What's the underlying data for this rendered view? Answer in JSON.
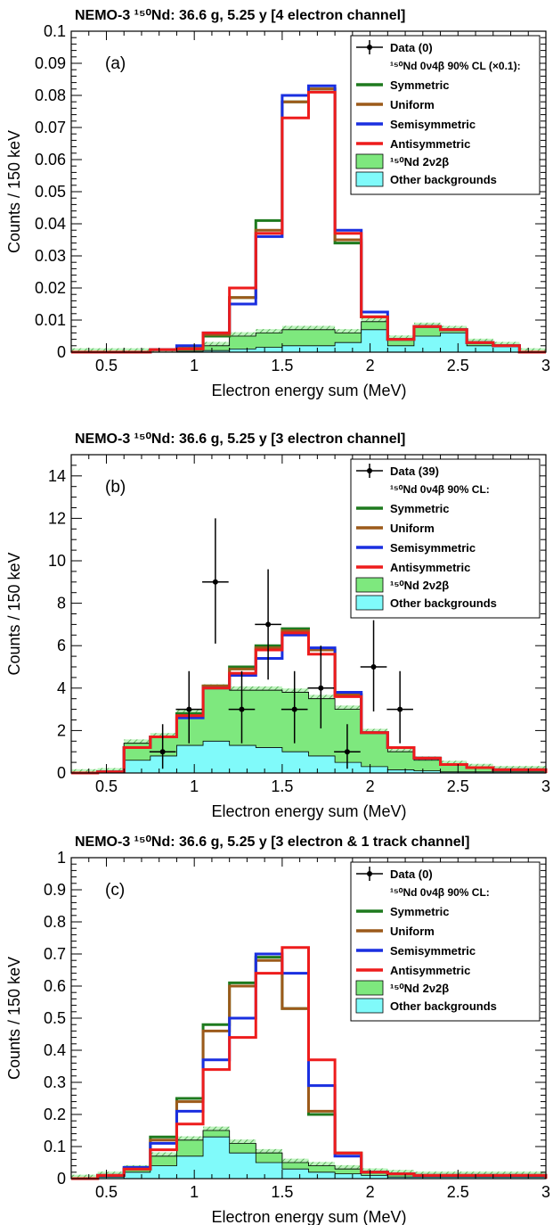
{
  "chart_data": [
    {
      "type": "bar",
      "title": "NEMO-3 ¹⁵⁰Nd: 36.6 g, 5.25 y [4 electron channel]",
      "panel_label": "(a)",
      "xlabel": "Electron energy sum (MeV)",
      "ylabel": "Counts / 150 keV",
      "xlim": [
        0.3,
        3.0
      ],
      "ylim": [
        0,
        0.1
      ],
      "xticks": [
        "0.5",
        "1",
        "1.5",
        "2",
        "2.5",
        "3"
      ],
      "yticks": [
        "0",
        "0.01",
        "0.02",
        "0.03",
        "0.04",
        "0.05",
        "0.06",
        "0.07",
        "0.08",
        "0.09",
        "0.1"
      ],
      "bin_edges": [
        0.3,
        0.45,
        0.6,
        0.75,
        0.9,
        1.05,
        1.2,
        1.35,
        1.5,
        1.65,
        1.8,
        1.95,
        2.1,
        2.25,
        2.4,
        2.55,
        2.7,
        2.85,
        3.0
      ],
      "legend_placement": "top-right",
      "legend": {
        "data": "Data (0)",
        "limit_header": "¹⁵⁰Nd 0ν4β 90% CL (×0.1):",
        "symmetric": "Symmetric",
        "uniform": "Uniform",
        "semisymmetric": "Semisymmetric",
        "antisymmetric": "Antisymmetric",
        "two_nu": "¹⁵⁰Nd 2ν2β",
        "other": "Other backgrounds"
      },
      "other_backgrounds": [
        0,
        0,
        0,
        0,
        0.0003,
        0.0005,
        0.001,
        0.0015,
        0.002,
        0.002,
        0.003,
        0.007,
        0.002,
        0.005,
        0.006,
        0.002,
        0.002,
        0
      ],
      "stack_total": [
        0,
        0,
        0,
        0,
        0.001,
        0.002,
        0.005,
        0.006,
        0.007,
        0.007,
        0.006,
        0.0095,
        0.004,
        0.008,
        0.007,
        0.003,
        0.002,
        0
      ],
      "series": [
        {
          "name": "Symmetric",
          "color": "#1e7a1e",
          "values": [
            0,
            0,
            0,
            0.0008,
            0.001,
            0.005,
            0.017,
            0.041,
            0.078,
            0.082,
            0.034,
            0.011,
            0.004,
            0.008,
            0.007,
            0.003,
            0.002,
            0
          ]
        },
        {
          "name": "Uniform",
          "color": "#9c5a1a",
          "values": [
            0,
            0,
            0,
            0.0008,
            0.0012,
            0.0055,
            0.017,
            0.038,
            0.078,
            0.082,
            0.035,
            0.011,
            0.004,
            0.008,
            0.007,
            0.003,
            0.002,
            0
          ]
        },
        {
          "name": "Semisymmetric",
          "color": "#1a2fe0",
          "values": [
            0,
            0,
            0,
            0.0008,
            0.002,
            0.006,
            0.015,
            0.036,
            0.08,
            0.083,
            0.038,
            0.0125,
            0.004,
            0.008,
            0.007,
            0.003,
            0.002,
            0
          ]
        },
        {
          "name": "Antisymmetric",
          "color": "#ee1c1c",
          "values": [
            0,
            0,
            0,
            0.0008,
            0.001,
            0.006,
            0.02,
            0.037,
            0.073,
            0.081,
            0.037,
            0.011,
            0.004,
            0.008,
            0.007,
            0.003,
            0.002,
            0
          ]
        }
      ],
      "data_points": []
    },
    {
      "type": "bar",
      "title": "NEMO-3 ¹⁵⁰Nd: 36.6 g, 5.25 y [3 electron channel]",
      "panel_label": "(b)",
      "xlabel": "Electron energy sum (MeV)",
      "ylabel": "Counts / 150 keV",
      "xlim": [
        0.3,
        3.0
      ],
      "ylim": [
        0,
        15
      ],
      "xticks": [
        "0.5",
        "1",
        "1.5",
        "2",
        "2.5",
        "3"
      ],
      "yticks": [
        "0",
        "2",
        "4",
        "6",
        "8",
        "10",
        "12",
        "14"
      ],
      "bin_edges": [
        0.3,
        0.45,
        0.6,
        0.75,
        0.9,
        1.05,
        1.2,
        1.35,
        1.5,
        1.65,
        1.8,
        1.95,
        2.1,
        2.25,
        2.4,
        2.55,
        2.7,
        2.85,
        3.0
      ],
      "legend_placement": "top-right",
      "legend": {
        "data": "Data (39)",
        "limit_header": "¹⁵⁰Nd 0ν4β 90% CL:",
        "symmetric": "Symmetric",
        "uniform": "Uniform",
        "semisymmetric": "Semisymmetric",
        "antisymmetric": "Antisymmetric",
        "two_nu": "¹⁵⁰Nd 2ν2β",
        "other": "Other backgrounds"
      },
      "other_backgrounds": [
        0,
        0.05,
        0.6,
        0.8,
        1.3,
        1.5,
        1.3,
        1.2,
        1.0,
        0.8,
        0.5,
        0.3,
        0.15,
        0.1,
        0.05,
        0.05,
        0.05,
        0.05
      ],
      "stack_total": [
        0,
        0.05,
        1.4,
        1.7,
        2.8,
        4.0,
        3.9,
        3.9,
        3.8,
        3.5,
        3.0,
        1.9,
        1.0,
        0.6,
        0.4,
        0.25,
        0.15,
        0.15
      ],
      "series": [
        {
          "name": "Symmetric",
          "color": "#1e7a1e",
          "values": [
            0,
            0.05,
            1.2,
            1.7,
            2.8,
            4.1,
            5.0,
            6.0,
            6.8,
            5.8,
            3.7,
            1.9,
            1.2,
            0.7,
            0.4,
            0.25,
            0.15,
            0.15
          ]
        },
        {
          "name": "Uniform",
          "color": "#9c5a1a",
          "values": [
            0,
            0.05,
            1.2,
            1.7,
            2.7,
            4.1,
            4.9,
            5.9,
            6.7,
            5.8,
            3.7,
            1.9,
            1.2,
            0.7,
            0.4,
            0.25,
            0.15,
            0.15
          ]
        },
        {
          "name": "Semisymmetric",
          "color": "#1a2fe0",
          "values": [
            0,
            0.05,
            1.2,
            1.7,
            2.6,
            4.0,
            4.6,
            5.4,
            6.5,
            5.9,
            3.8,
            1.9,
            1.2,
            0.7,
            0.4,
            0.25,
            0.15,
            0.15
          ]
        },
        {
          "name": "Antisymmetric",
          "color": "#ee1c1c",
          "values": [
            0,
            0.05,
            1.2,
            1.7,
            2.7,
            4.0,
            4.7,
            5.8,
            6.6,
            5.6,
            3.6,
            1.9,
            1.2,
            0.7,
            0.4,
            0.25,
            0.15,
            0.15
          ]
        }
      ],
      "data_points": [
        {
          "x": 0.82,
          "y": 1,
          "yerr_low": 0.8,
          "yerr_high": 1.3,
          "xerr": 0.075
        },
        {
          "x": 0.97,
          "y": 3,
          "yerr_low": 1.6,
          "yerr_high": 1.8,
          "xerr": 0.075
        },
        {
          "x": 1.12,
          "y": 9,
          "yerr_low": 2.9,
          "yerr_high": 3.0,
          "xerr": 0.075
        },
        {
          "x": 1.27,
          "y": 3,
          "yerr_low": 1.6,
          "yerr_high": 1.8,
          "xerr": 0.075
        },
        {
          "x": 1.42,
          "y": 7,
          "yerr_low": 2.6,
          "yerr_high": 2.6,
          "xerr": 0.075
        },
        {
          "x": 1.57,
          "y": 3,
          "yerr_low": 1.6,
          "yerr_high": 1.8,
          "xerr": 0.075
        },
        {
          "x": 1.72,
          "y": 4,
          "yerr_low": 1.9,
          "yerr_high": 2.0,
          "xerr": 0.075
        },
        {
          "x": 1.87,
          "y": 1,
          "yerr_low": 0.8,
          "yerr_high": 1.3,
          "xerr": 0.075
        },
        {
          "x": 2.02,
          "y": 5,
          "yerr_low": 2.1,
          "yerr_high": 2.2,
          "xerr": 0.075
        },
        {
          "x": 2.17,
          "y": 3,
          "yerr_low": 1.6,
          "yerr_high": 1.8,
          "xerr": 0.075
        }
      ]
    },
    {
      "type": "bar",
      "title": "NEMO-3 ¹⁵⁰Nd: 36.6 g, 5.25 y [3 electron & 1 track channel]",
      "panel_label": "(c)",
      "xlabel": "Electron energy sum (MeV)",
      "ylabel": "Counts / 150 keV",
      "xlim": [
        0.3,
        3.0
      ],
      "ylim": [
        0,
        1
      ],
      "xticks": [
        "0.5",
        "1",
        "1.5",
        "2",
        "2.5",
        "3"
      ],
      "yticks": [
        "0",
        "0.1",
        "0.2",
        "0.3",
        "0.4",
        "0.5",
        "0.6",
        "0.7",
        "0.8",
        "0.9",
        "1"
      ],
      "bin_edges": [
        0.3,
        0.45,
        0.6,
        0.75,
        0.9,
        1.05,
        1.2,
        1.35,
        1.5,
        1.65,
        1.8,
        1.95,
        2.1,
        2.25,
        2.4,
        2.55,
        2.7,
        2.85,
        3.0
      ],
      "legend_placement": "top-right",
      "legend": {
        "data": "Data (0)",
        "limit_header": "¹⁵⁰Nd 0ν4β 90% CL:",
        "symmetric": "Symmetric",
        "uniform": "Uniform",
        "semisymmetric": "Semisymmetric",
        "antisymmetric": "Antisymmetric",
        "two_nu": "¹⁵⁰Nd 2ν2β",
        "other": "Other backgrounds"
      },
      "other_backgrounds": [
        0,
        0.005,
        0.02,
        0.04,
        0.07,
        0.13,
        0.08,
        0.05,
        0.03,
        0.02,
        0.015,
        0.01,
        0.005,
        0.005,
        0.005,
        0.005,
        0.005,
        0.005
      ],
      "stack_total": [
        0,
        0.01,
        0.03,
        0.07,
        0.12,
        0.15,
        0.11,
        0.08,
        0.05,
        0.04,
        0.03,
        0.02,
        0.015,
        0.01,
        0.01,
        0.01,
        0.01,
        0.01
      ],
      "series": [
        {
          "name": "Symmetric",
          "color": "#1e7a1e",
          "values": [
            0,
            0.01,
            0.03,
            0.13,
            0.25,
            0.48,
            0.61,
            0.69,
            0.53,
            0.2,
            0.08,
            0.02,
            0.015,
            0.01,
            0.01,
            0.01,
            0.01,
            0.01
          ]
        },
        {
          "name": "Uniform",
          "color": "#9c5a1a",
          "values": [
            0,
            0.01,
            0.03,
            0.12,
            0.24,
            0.46,
            0.6,
            0.68,
            0.53,
            0.21,
            0.08,
            0.02,
            0.015,
            0.01,
            0.01,
            0.01,
            0.01,
            0.01
          ]
        },
        {
          "name": "Semisymmetric",
          "color": "#1a2fe0",
          "values": [
            0,
            0.01,
            0.035,
            0.11,
            0.21,
            0.37,
            0.5,
            0.7,
            0.64,
            0.29,
            0.07,
            0.02,
            0.015,
            0.01,
            0.01,
            0.01,
            0.01,
            0.01
          ]
        },
        {
          "name": "Antisymmetric",
          "color": "#ee1c1c",
          "values": [
            0,
            0.01,
            0.03,
            0.09,
            0.17,
            0.34,
            0.44,
            0.64,
            0.72,
            0.37,
            0.08,
            0.02,
            0.015,
            0.01,
            0.01,
            0.01,
            0.01,
            0.01
          ]
        }
      ],
      "data_points": []
    }
  ],
  "colors": {
    "two_nu_fill": "#7ee87e",
    "other_fill": "#80fafa",
    "axis": "#000000"
  }
}
